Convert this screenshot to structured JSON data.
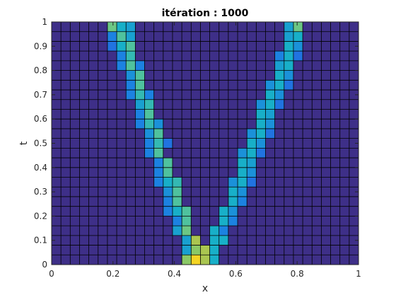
{
  "chart_data": {
    "type": "heatmap",
    "title": "itération : 1000",
    "xlabel": "x",
    "ylabel": "t",
    "xlim": [
      0,
      1
    ],
    "ylim": [
      0,
      1
    ],
    "x_ticks": [
      "0",
      "0.2",
      "0.4",
      "0.6",
      "0.8",
      "1"
    ],
    "y_ticks": [
      "0",
      "0.1",
      "0.2",
      "0.3",
      "0.4",
      "0.5",
      "0.6",
      "0.7",
      "0.8",
      "0.9",
      "1"
    ],
    "grid": true,
    "colormap": "parula",
    "clim": [
      0,
      1
    ],
    "colors": {
      "background_cell": "#3e2f88",
      "grid_line": "#000000",
      "axes_line": "#262626"
    },
    "dims": {
      "nx": 33,
      "nt": 25
    },
    "x_edges_range": [
      0,
      1
    ],
    "t_edges_range": [
      0,
      1
    ],
    "cells": [
      {
        "t": 0,
        "c": [
          [
            14,
            0.7
          ],
          [
            15,
            0.95
          ],
          [
            16,
            0.75
          ],
          [
            17,
            0.5
          ]
        ]
      },
      {
        "t": 1,
        "c": [
          [
            14,
            0.45
          ],
          [
            15,
            0.7
          ],
          [
            16,
            0.75
          ],
          [
            17,
            0.5
          ]
        ]
      },
      {
        "t": 2,
        "c": [
          [
            14,
            0.45
          ],
          [
            15,
            0.75
          ],
          [
            17,
            0.5
          ],
          [
            18,
            0.5
          ]
        ]
      },
      {
        "t": 3,
        "c": [
          [
            13,
            0.45
          ],
          [
            14,
            0.65
          ],
          [
            17,
            0.5
          ],
          [
            18,
            0.35
          ]
        ]
      },
      {
        "t": 4,
        "c": [
          [
            13,
            0.35
          ],
          [
            14,
            0.6
          ],
          [
            18,
            0.5
          ],
          [
            19,
            0.35
          ]
        ]
      },
      {
        "t": 5,
        "c": [
          [
            12,
            0.35
          ],
          [
            13,
            0.5
          ],
          [
            14,
            0.6
          ],
          [
            18,
            0.5
          ],
          [
            19,
            0.4
          ]
        ]
      },
      {
        "t": 6,
        "c": [
          [
            12,
            0.35
          ],
          [
            13,
            0.6
          ],
          [
            19,
            0.5
          ],
          [
            20,
            0.35
          ]
        ]
      },
      {
        "t": 7,
        "c": [
          [
            12,
            0.4
          ],
          [
            13,
            0.6
          ],
          [
            19,
            0.5
          ],
          [
            20,
            0.4
          ]
        ]
      },
      {
        "t": 8,
        "c": [
          [
            11,
            0.35
          ],
          [
            12,
            0.5
          ],
          [
            13,
            0.55
          ],
          [
            19,
            0.4
          ],
          [
            20,
            0.5
          ],
          [
            21,
            0.3
          ]
        ]
      },
      {
        "t": 9,
        "c": [
          [
            11,
            0.35
          ],
          [
            12,
            0.6
          ],
          [
            20,
            0.5
          ],
          [
            21,
            0.4
          ]
        ]
      },
      {
        "t": 10,
        "c": [
          [
            11,
            0.35
          ],
          [
            12,
            0.6
          ],
          [
            20,
            0.5
          ],
          [
            21,
            0.45
          ]
        ]
      },
      {
        "t": 11,
        "c": [
          [
            10,
            0.35
          ],
          [
            11,
            0.6
          ],
          [
            20,
            0.4
          ],
          [
            21,
            0.5
          ],
          [
            22,
            0.3
          ]
        ]
      },
      {
        "t": 12,
        "c": [
          [
            10,
            0.35
          ],
          [
            11,
            0.55
          ],
          [
            12,
            0.3
          ],
          [
            21,
            0.5
          ],
          [
            22,
            0.4
          ]
        ]
      },
      {
        "t": 13,
        "c": [
          [
            10,
            0.4
          ],
          [
            11,
            0.6
          ],
          [
            21,
            0.4
          ],
          [
            22,
            0.5
          ],
          [
            23,
            0.3
          ]
        ]
      },
      {
        "t": 14,
        "c": [
          [
            9,
            0.35
          ],
          [
            10,
            0.55
          ],
          [
            11,
            0.4
          ],
          [
            22,
            0.5
          ],
          [
            23,
            0.4
          ]
        ]
      },
      {
        "t": 15,
        "c": [
          [
            9,
            0.35
          ],
          [
            10,
            0.6
          ],
          [
            22,
            0.5
          ],
          [
            23,
            0.45
          ]
        ]
      },
      {
        "t": 16,
        "c": [
          [
            9,
            0.45
          ],
          [
            10,
            0.55
          ],
          [
            22,
            0.4
          ],
          [
            23,
            0.5
          ],
          [
            24,
            0.3
          ]
        ]
      },
      {
        "t": 17,
        "c": [
          [
            8,
            0.35
          ],
          [
            9,
            0.55
          ],
          [
            10,
            0.35
          ],
          [
            23,
            0.5
          ],
          [
            24,
            0.4
          ]
        ]
      },
      {
        "t": 18,
        "c": [
          [
            8,
            0.35
          ],
          [
            9,
            0.6
          ],
          [
            23,
            0.4
          ],
          [
            24,
            0.5
          ],
          [
            25,
            0.3
          ]
        ]
      },
      {
        "t": 19,
        "c": [
          [
            8,
            0.4
          ],
          [
            9,
            0.6
          ],
          [
            24,
            0.5
          ],
          [
            25,
            0.4
          ]
        ]
      },
      {
        "t": 20,
        "c": [
          [
            7,
            0.35
          ],
          [
            8,
            0.6
          ],
          [
            9,
            0.35
          ],
          [
            24,
            0.45
          ],
          [
            25,
            0.5
          ]
        ]
      },
      {
        "t": 21,
        "c": [
          [
            7,
            0.35
          ],
          [
            8,
            0.55
          ],
          [
            24,
            0.35
          ],
          [
            25,
            0.5
          ],
          [
            26,
            0.3
          ]
        ]
      },
      {
        "t": 22,
        "c": [
          [
            6,
            0.3
          ],
          [
            7,
            0.5
          ],
          [
            8,
            0.6
          ],
          [
            25,
            0.5
          ],
          [
            26,
            0.4
          ]
        ]
      },
      {
        "t": 23,
        "c": [
          [
            6,
            0.35
          ],
          [
            7,
            0.6
          ],
          [
            8,
            0.45
          ],
          [
            25,
            0.45
          ],
          [
            26,
            0.5
          ]
        ]
      },
      {
        "t": 24,
        "c": [
          [
            6,
            0.65
          ],
          [
            7,
            0.5
          ],
          [
            8,
            0.45
          ],
          [
            25,
            0.45
          ],
          [
            26,
            0.65
          ]
        ]
      }
    ]
  }
}
